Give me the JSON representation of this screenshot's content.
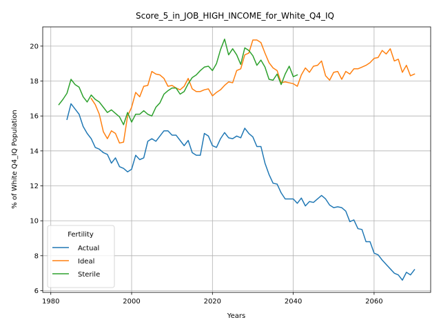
{
  "chart_data": {
    "type": "line",
    "title": "Score_5_in_JOB_HIGH_INCOME_for_White_Q4_IQ",
    "xlabel": "Years",
    "ylabel": "% of White Q4_IQ Population",
    "xlim": [
      1978,
      2074
    ],
    "ylim": [
      5.9,
      21.1
    ],
    "xticks": [
      1980,
      2000,
      2020,
      2040,
      2060
    ],
    "yticks": [
      6,
      8,
      10,
      12,
      14,
      16,
      18,
      20
    ],
    "grid": true,
    "legend": {
      "title": "Fertility",
      "placement": "lower-left"
    },
    "series": [
      {
        "name": "Actual",
        "color": "#1f77b4",
        "points": [
          [
            1984,
            15.8
          ],
          [
            1985,
            16.7
          ],
          [
            1986,
            16.4
          ],
          [
            1987,
            16.1
          ],
          [
            1988,
            15.4
          ],
          [
            1989,
            15.0
          ],
          [
            1990,
            14.7
          ],
          [
            1991,
            14.2
          ],
          [
            1992,
            14.1
          ],
          [
            1993,
            13.9
          ],
          [
            1994,
            13.8
          ],
          [
            1995,
            13.3
          ],
          [
            1996,
            13.6
          ],
          [
            1997,
            13.1
          ],
          [
            1998,
            13.0
          ],
          [
            1999,
            12.8
          ],
          [
            2000,
            12.95
          ],
          [
            2001,
            13.75
          ],
          [
            2002,
            13.5
          ],
          [
            2003,
            13.6
          ],
          [
            2004,
            14.55
          ],
          [
            2005,
            14.7
          ],
          [
            2006,
            14.55
          ],
          [
            2007,
            14.85
          ],
          [
            2008,
            15.15
          ],
          [
            2009,
            15.15
          ],
          [
            2010,
            14.9
          ],
          [
            2011,
            14.9
          ],
          [
            2012,
            14.6
          ],
          [
            2013,
            14.3
          ],
          [
            2014,
            14.6
          ],
          [
            2015,
            13.9
          ],
          [
            2016,
            13.75
          ],
          [
            2017,
            13.75
          ],
          [
            2018,
            15.0
          ],
          [
            2019,
            14.85
          ],
          [
            2020,
            14.3
          ],
          [
            2021,
            14.2
          ],
          [
            2022,
            14.7
          ],
          [
            2023,
            15.05
          ],
          [
            2024,
            14.75
          ],
          [
            2025,
            14.7
          ],
          [
            2026,
            14.85
          ],
          [
            2027,
            14.75
          ],
          [
            2028,
            15.3
          ],
          [
            2029,
            15.0
          ],
          [
            2030,
            14.8
          ],
          [
            2031,
            14.25
          ],
          [
            2032,
            14.25
          ],
          [
            2033,
            13.3
          ],
          [
            2034,
            12.65
          ],
          [
            2035,
            12.15
          ],
          [
            2036,
            12.1
          ],
          [
            2037,
            11.6
          ],
          [
            2038,
            11.25
          ],
          [
            2039,
            11.25
          ],
          [
            2040,
            11.25
          ],
          [
            2041,
            11.0
          ],
          [
            2042,
            11.3
          ],
          [
            2043,
            10.85
          ],
          [
            2044,
            11.1
          ],
          [
            2045,
            11.05
          ],
          [
            2046,
            11.25
          ],
          [
            2047,
            11.45
          ],
          [
            2048,
            11.25
          ],
          [
            2049,
            10.9
          ],
          [
            2050,
            10.75
          ],
          [
            2051,
            10.8
          ],
          [
            2052,
            10.75
          ],
          [
            2053,
            10.55
          ],
          [
            2054,
            9.95
          ],
          [
            2055,
            10.05
          ],
          [
            2056,
            9.55
          ],
          [
            2057,
            9.5
          ],
          [
            2058,
            8.8
          ],
          [
            2059,
            8.8
          ],
          [
            2060,
            8.15
          ],
          [
            2061,
            8.05
          ],
          [
            2062,
            7.75
          ],
          [
            2063,
            7.5
          ],
          [
            2064,
            7.25
          ],
          [
            2065,
            7.0
          ],
          [
            2066,
            6.9
          ],
          [
            2067,
            6.6
          ],
          [
            2068,
            7.05
          ],
          [
            2069,
            6.9
          ],
          [
            2070,
            7.2
          ]
        ]
      },
      {
        "name": "Ideal",
        "color": "#ff7f0e",
        "points": [
          [
            1990,
            17.0
          ],
          [
            1991,
            16.65
          ],
          [
            1992,
            16.1
          ],
          [
            1993,
            15.1
          ],
          [
            1994,
            14.7
          ],
          [
            1995,
            15.15
          ],
          [
            1996,
            15.0
          ],
          [
            1997,
            14.45
          ],
          [
            1998,
            14.5
          ],
          [
            1999,
            16.0
          ],
          [
            2000,
            16.5
          ],
          [
            2001,
            17.35
          ],
          [
            2002,
            17.1
          ],
          [
            2003,
            17.7
          ],
          [
            2004,
            17.75
          ],
          [
            2005,
            18.55
          ],
          [
            2006,
            18.4
          ],
          [
            2007,
            18.35
          ],
          [
            2008,
            18.15
          ],
          [
            2009,
            17.7
          ],
          [
            2010,
            17.75
          ],
          [
            2011,
            17.6
          ],
          [
            2012,
            17.5
          ],
          [
            2013,
            17.7
          ],
          [
            2014,
            18.15
          ],
          [
            2015,
            17.55
          ],
          [
            2016,
            17.4
          ],
          [
            2017,
            17.4
          ],
          [
            2018,
            17.5
          ],
          [
            2019,
            17.55
          ],
          [
            2020,
            17.15
          ],
          [
            2021,
            17.35
          ],
          [
            2022,
            17.5
          ],
          [
            2023,
            17.75
          ],
          [
            2024,
            17.95
          ],
          [
            2025,
            17.9
          ],
          [
            2026,
            18.6
          ],
          [
            2027,
            18.7
          ],
          [
            2028,
            19.5
          ],
          [
            2029,
            19.6
          ],
          [
            2030,
            20.35
          ],
          [
            2031,
            20.35
          ],
          [
            2032,
            20.2
          ],
          [
            2033,
            19.6
          ],
          [
            2034,
            19.05
          ],
          [
            2035,
            18.75
          ],
          [
            2036,
            18.6
          ],
          [
            2037,
            17.9
          ],
          [
            2038,
            17.95
          ],
          [
            2039,
            17.9
          ],
          [
            2040,
            17.85
          ],
          [
            2041,
            17.7
          ],
          [
            2042,
            18.35
          ],
          [
            2043,
            18.75
          ],
          [
            2044,
            18.5
          ],
          [
            2045,
            18.85
          ],
          [
            2046,
            18.9
          ],
          [
            2047,
            19.15
          ],
          [
            2048,
            18.3
          ],
          [
            2049,
            18.05
          ],
          [
            2050,
            18.5
          ],
          [
            2051,
            18.55
          ],
          [
            2052,
            18.1
          ],
          [
            2053,
            18.55
          ],
          [
            2054,
            18.4
          ],
          [
            2055,
            18.7
          ],
          [
            2056,
            18.7
          ],
          [
            2057,
            18.8
          ],
          [
            2058,
            18.9
          ],
          [
            2059,
            19.05
          ],
          [
            2060,
            19.3
          ],
          [
            2061,
            19.35
          ],
          [
            2062,
            19.75
          ],
          [
            2063,
            19.55
          ],
          [
            2064,
            19.85
          ],
          [
            2065,
            19.15
          ],
          [
            2066,
            19.25
          ],
          [
            2067,
            18.5
          ],
          [
            2068,
            18.9
          ],
          [
            2069,
            18.3
          ],
          [
            2070,
            18.4
          ]
        ]
      },
      {
        "name": "Sterile",
        "color": "#2ca02c",
        "points": [
          [
            1982,
            16.65
          ],
          [
            1983,
            16.95
          ],
          [
            1984,
            17.3
          ],
          [
            1985,
            18.1
          ],
          [
            1986,
            17.8
          ],
          [
            1987,
            17.65
          ],
          [
            1988,
            17.1
          ],
          [
            1989,
            16.8
          ],
          [
            1990,
            17.2
          ],
          [
            1991,
            16.95
          ],
          [
            1992,
            16.8
          ],
          [
            1993,
            16.5
          ],
          [
            1994,
            16.2
          ],
          [
            1995,
            16.35
          ],
          [
            1996,
            16.15
          ],
          [
            1997,
            15.95
          ],
          [
            1998,
            15.5
          ],
          [
            1999,
            16.2
          ],
          [
            2000,
            15.65
          ],
          [
            2001,
            16.1
          ],
          [
            2002,
            16.1
          ],
          [
            2003,
            16.3
          ],
          [
            2004,
            16.1
          ],
          [
            2005,
            16.0
          ],
          [
            2006,
            16.5
          ],
          [
            2007,
            16.75
          ],
          [
            2008,
            17.25
          ],
          [
            2009,
            17.45
          ],
          [
            2010,
            17.6
          ],
          [
            2011,
            17.6
          ],
          [
            2012,
            17.25
          ],
          [
            2013,
            17.4
          ],
          [
            2014,
            17.85
          ],
          [
            2015,
            18.2
          ],
          [
            2016,
            18.35
          ],
          [
            2017,
            18.6
          ],
          [
            2018,
            18.8
          ],
          [
            2019,
            18.85
          ],
          [
            2020,
            18.6
          ],
          [
            2021,
            19.0
          ],
          [
            2022,
            19.8
          ],
          [
            2023,
            20.4
          ],
          [
            2024,
            19.5
          ],
          [
            2025,
            19.85
          ],
          [
            2026,
            19.5
          ],
          [
            2027,
            18.95
          ],
          [
            2028,
            19.9
          ],
          [
            2029,
            19.75
          ],
          [
            2030,
            19.45
          ],
          [
            2031,
            18.9
          ],
          [
            2032,
            19.2
          ],
          [
            2033,
            18.8
          ],
          [
            2034,
            18.1
          ],
          [
            2035,
            18.05
          ],
          [
            2036,
            18.4
          ],
          [
            2037,
            17.8
          ],
          [
            2038,
            18.4
          ],
          [
            2039,
            18.85
          ],
          [
            2040,
            18.25
          ],
          [
            2041,
            18.35
          ]
        ]
      }
    ]
  }
}
